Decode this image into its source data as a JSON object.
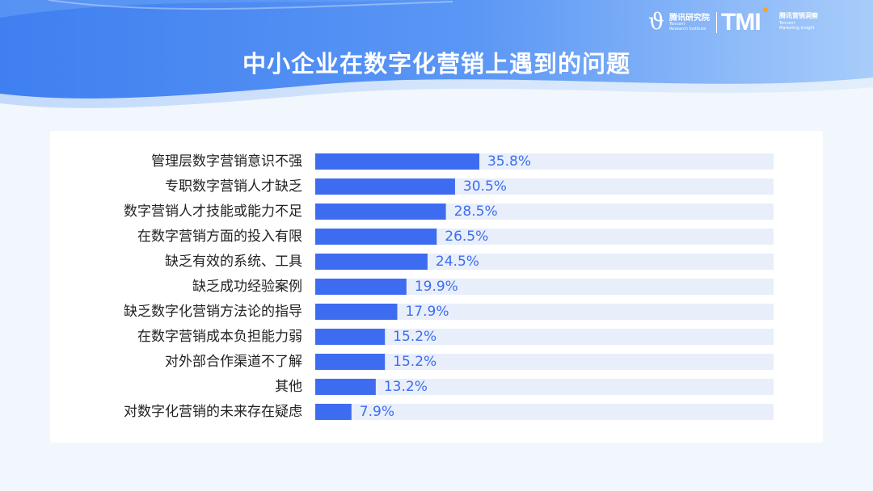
{
  "header": {
    "title": "中小企业在数字化营销上遇到的问题",
    "logo_left_cn": "腾讯研究院",
    "logo_left_en_1": "Tencent",
    "logo_left_en_2": "Research Institute",
    "logo_right_mark": "TMI",
    "logo_right_cn": "腾讯营销洞察",
    "logo_right_en_1": "Tencent",
    "logo_right_en_2": "Marketing Insight"
  },
  "colors": {
    "bar": "#3e6cf0",
    "track": "#e9eefb",
    "value_text": "#3b6ef0",
    "header_gradient_start": "#4a8af4",
    "header_gradient_end": "#a6cbfa"
  },
  "chart_data": {
    "type": "bar",
    "orientation": "horizontal",
    "title": "中小企业在数字化营销上遇到的问题",
    "categories": [
      "管理层数字营销意识不强",
      "专职数字营销人才缺乏",
      "数字营销人才技能或能力不足",
      "在数字营销方面的投入有限",
      "缺乏有效的系统、工具",
      "缺乏成功经验案例",
      "缺乏数字化营销方法论的指导",
      "在数字营销成本负担能力弱",
      "对外部合作渠道不了解",
      "其他",
      "对数字化营销的未来存在疑虑"
    ],
    "values": [
      35.8,
      30.5,
      28.5,
      26.5,
      24.5,
      19.9,
      17.9,
      15.2,
      15.2,
      13.2,
      7.9
    ],
    "value_labels": [
      "35.8%",
      "30.5%",
      "28.5%",
      "26.5%",
      "24.5%",
      "19.9%",
      "17.9%",
      "15.2%",
      "15.2%",
      "13.2%",
      "7.9%"
    ],
    "unit": "%",
    "xlim": [
      0,
      100
    ],
    "grid": false,
    "legend": "none"
  }
}
